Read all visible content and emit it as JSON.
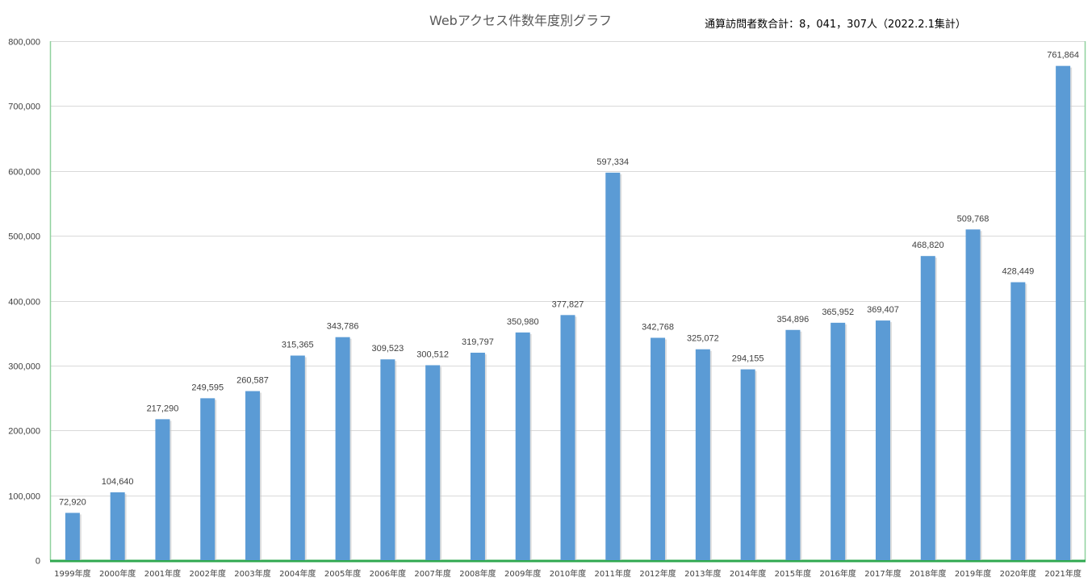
{
  "chart_data": {
    "type": "bar",
    "title": "Webアクセス件数年度別グラフ",
    "subtitle": "通算訪問者数合計：8，041，307人（2022.2.1集計）",
    "xlabel": "",
    "ylabel": "",
    "ylim": [
      0,
      800000
    ],
    "ytick_values": [
      0,
      100000,
      200000,
      300000,
      400000,
      500000,
      600000,
      700000,
      800000
    ],
    "ytick_labels": [
      "0",
      "100,000",
      "200,000",
      "300,000",
      "400,000",
      "500,000",
      "600,000",
      "700,000",
      "800,000"
    ],
    "grid": true,
    "legend": "none",
    "bar_color": "#5B9BD5",
    "categories": [
      "1999年度",
      "2000年度",
      "2001年度",
      "2002年度",
      "2003年度",
      "2004年度",
      "2005年度",
      "2006年度",
      "2007年度",
      "2008年度",
      "2009年度",
      "2010年度",
      "2011年度",
      "2012年度",
      "2013年度",
      "2014年度",
      "2015年度",
      "2016年度",
      "2017年度",
      "2018年度",
      "2019年度",
      "2020年度",
      "2021年度"
    ],
    "values": [
      72920,
      104640,
      217290,
      249595,
      260587,
      315365,
      343786,
      309523,
      300512,
      319797,
      350980,
      377827,
      597334,
      342768,
      325072,
      294155,
      354896,
      365952,
      369407,
      468820,
      509768,
      428449,
      761864
    ],
    "data_labels": [
      "72,920",
      "104,640",
      "217,290",
      "249,595",
      "260,587",
      "315,365",
      "343,786",
      "309,523",
      "300,512",
      "319,797",
      "350,980",
      "377,827",
      "597,334",
      "342,768",
      "325,072",
      "294,155",
      "354,896",
      "365,952",
      "369,407",
      "468,820",
      "509,768",
      "428,449",
      "761,864"
    ]
  }
}
